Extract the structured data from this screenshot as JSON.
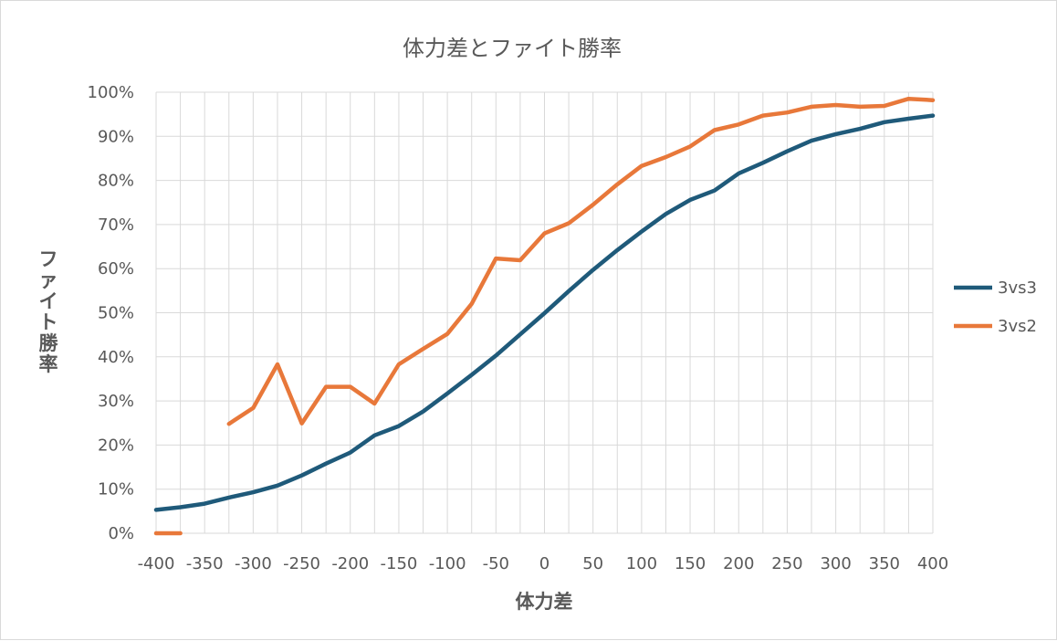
{
  "chart_data": {
    "type": "line",
    "title": "体力差とファイト勝率",
    "xlabel": "体力差",
    "ylabel": "ファイト勝率",
    "xlim": [
      -400,
      400
    ],
    "ylim": [
      0,
      1
    ],
    "x": [
      -400,
      -375,
      -350,
      -325,
      -300,
      -275,
      -250,
      -225,
      -200,
      -175,
      -150,
      -125,
      -100,
      -75,
      -50,
      -25,
      0,
      25,
      50,
      75,
      100,
      125,
      150,
      175,
      200,
      225,
      250,
      275,
      300,
      325,
      350,
      375,
      400
    ],
    "x_tick_labels": [
      "-400",
      "-350",
      "-300",
      "-250",
      "-200",
      "-150",
      "-100",
      "-50",
      "0",
      "50",
      "100",
      "150",
      "200",
      "250",
      "300",
      "350",
      "400"
    ],
    "x_tick_values": [
      -400,
      -350,
      -300,
      -250,
      -200,
      -150,
      -100,
      -50,
      0,
      50,
      100,
      150,
      200,
      250,
      300,
      350,
      400
    ],
    "y_tick_labels": [
      "0%",
      "10%",
      "20%",
      "30%",
      "40%",
      "50%",
      "60%",
      "70%",
      "80%",
      "90%",
      "100%"
    ],
    "y_tick_values": [
      0,
      0.1,
      0.2,
      0.3,
      0.4,
      0.5,
      0.6,
      0.7,
      0.8,
      0.9,
      1.0
    ],
    "grid": true,
    "legend_position": "right",
    "series": [
      {
        "name": "3vs3",
        "color": "#1f5a7a",
        "values": [
          0.053,
          0.059,
          0.067,
          0.081,
          0.093,
          0.108,
          0.131,
          0.158,
          0.183,
          0.222,
          0.243,
          0.276,
          0.317,
          0.359,
          0.403,
          0.451,
          0.499,
          0.549,
          0.597,
          0.642,
          0.684,
          0.724,
          0.756,
          0.777,
          0.816,
          0.84,
          0.866,
          0.89,
          0.905,
          0.917,
          0.932,
          0.94,
          0.947
        ]
      },
      {
        "name": "3vs2",
        "color": "#e8783a",
        "values": [
          0.0,
          0.0,
          null,
          0.248,
          0.284,
          0.383,
          0.249,
          0.332,
          0.332,
          0.294,
          0.383,
          0.418,
          0.452,
          0.52,
          0.623,
          0.619,
          0.68,
          0.703,
          0.745,
          0.791,
          0.833,
          0.853,
          0.877,
          0.914,
          0.927,
          0.947,
          0.954,
          0.967,
          0.971,
          0.967,
          0.969,
          0.985,
          0.982
        ]
      }
    ]
  }
}
